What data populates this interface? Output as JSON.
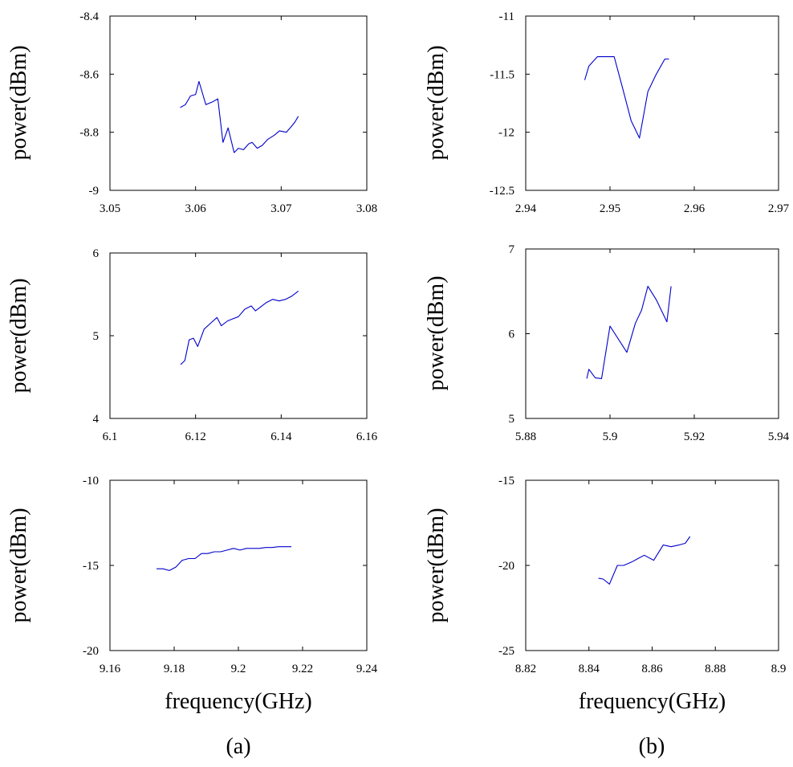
{
  "chart_data": [
    {
      "type": "line",
      "panel": "(a) top",
      "xlabel": "",
      "ylabel": "power(dBm)",
      "xlim": [
        3.05,
        3.08
      ],
      "ylim": [
        -9,
        -8.4
      ],
      "xticks": [
        "3.05",
        "3.06",
        "3.07",
        "3.08"
      ],
      "yticks": [
        "-9",
        "-8.8",
        "-8.6",
        "-8.4"
      ],
      "series": [
        {
          "color": "#0000cc",
          "x": [
            3.0582,
            3.0588,
            3.0594,
            3.06,
            3.0604,
            3.0612,
            3.062,
            3.0626,
            3.0632,
            3.0638,
            3.0645,
            3.065,
            3.0656,
            3.0662,
            3.0666,
            3.0672,
            3.0678,
            3.0684,
            3.0692,
            3.0698,
            3.0706,
            3.0712,
            3.0716,
            3.072
          ],
          "y": [
            -8.715,
            -8.705,
            -8.675,
            -8.67,
            -8.625,
            -8.705,
            -8.695,
            -8.685,
            -8.835,
            -8.785,
            -8.87,
            -8.855,
            -8.86,
            -8.84,
            -8.835,
            -8.855,
            -8.845,
            -8.825,
            -8.81,
            -8.795,
            -8.8,
            -8.78,
            -8.765,
            -8.745
          ]
        }
      ]
    },
    {
      "type": "line",
      "panel": "(b) top",
      "xlabel": "",
      "ylabel": "power(dBm)",
      "xlim": [
        2.94,
        2.97
      ],
      "ylim": [
        -12.5,
        -11
      ],
      "xticks": [
        "2.94",
        "2.95",
        "2.96",
        "2.97"
      ],
      "yticks": [
        "-12.5",
        "-12",
        "-11.5",
        "-11"
      ],
      "series": [
        {
          "color": "#0000cc",
          "x": [
            2.947,
            2.9475,
            2.9485,
            2.9495,
            2.9505,
            2.9515,
            2.9525,
            2.9535,
            2.9545,
            2.9555,
            2.9565,
            2.957
          ],
          "y": [
            -11.55,
            -11.43,
            -11.35,
            -11.35,
            -11.35,
            -11.62,
            -11.9,
            -12.05,
            -11.65,
            -11.5,
            -11.37,
            -11.37
          ]
        }
      ]
    },
    {
      "type": "line",
      "panel": "(a) middle",
      "xlabel": "",
      "ylabel": "power(dBm)",
      "xlim": [
        6.1,
        6.16
      ],
      "ylim": [
        4,
        6
      ],
      "xticks": [
        "6.1",
        "6.12",
        "6.14",
        "6.16"
      ],
      "yticks": [
        "4",
        "5",
        "6"
      ],
      "series": [
        {
          "color": "#0000cc",
          "x": [
            6.1165,
            6.1175,
            6.1185,
            6.1195,
            6.1205,
            6.122,
            6.1235,
            6.125,
            6.126,
            6.1275,
            6.1285,
            6.13,
            6.1315,
            6.133,
            6.134,
            6.1355,
            6.1365,
            6.138,
            6.1395,
            6.141,
            6.1425,
            6.144
          ],
          "y": [
            4.65,
            4.7,
            4.95,
            4.97,
            4.87,
            5.08,
            5.15,
            5.22,
            5.12,
            5.18,
            5.2,
            5.23,
            5.32,
            5.36,
            5.3,
            5.36,
            5.4,
            5.44,
            5.42,
            5.44,
            5.48,
            5.54
          ]
        }
      ]
    },
    {
      "type": "line",
      "panel": "(b) middle",
      "xlabel": "",
      "ylabel": "power(dBm)",
      "xlim": [
        5.88,
        5.94
      ],
      "ylim": [
        5,
        7
      ],
      "xticks": [
        "5.88",
        "5.9",
        "5.92",
        "5.94"
      ],
      "yticks": [
        "5",
        "6",
        "7"
      ],
      "series": [
        {
          "color": "#0000cc",
          "x": [
            5.8945,
            5.895,
            5.8965,
            5.898,
            5.9,
            5.904,
            5.906,
            5.9075,
            5.909,
            5.911,
            5.9135,
            5.9145
          ],
          "y": [
            5.47,
            5.58,
            5.48,
            5.47,
            6.09,
            5.78,
            6.12,
            6.28,
            6.56,
            6.4,
            6.14,
            6.56
          ]
        }
      ]
    },
    {
      "type": "line",
      "panel": "(a) bottom",
      "xlabel": "frequency(GHz)",
      "ylabel": "power(dBm)",
      "xlim": [
        9.16,
        9.24
      ],
      "ylim": [
        -20,
        -10
      ],
      "xticks": [
        "9.16",
        "9.18",
        "9.2",
        "9.22",
        "9.24"
      ],
      "yticks": [
        "-20",
        "-15",
        "-10"
      ],
      "series": [
        {
          "color": "#0000cc",
          "x": [
            9.1745,
            9.1765,
            9.1785,
            9.1805,
            9.1825,
            9.1845,
            9.1865,
            9.1885,
            9.1905,
            9.1925,
            9.1945,
            9.1965,
            9.1985,
            9.2005,
            9.2025,
            9.2045,
            9.2065,
            9.2085,
            9.2105,
            9.2125,
            9.2145,
            9.2165
          ],
          "y": [
            -15.2,
            -15.2,
            -15.3,
            -15.1,
            -14.7,
            -14.6,
            -14.6,
            -14.3,
            -14.3,
            -14.2,
            -14.2,
            -14.1,
            -14.0,
            -14.1,
            -14.0,
            -14.0,
            -14.0,
            -13.95,
            -13.95,
            -13.9,
            -13.9,
            -13.9
          ]
        }
      ]
    },
    {
      "type": "line",
      "panel": "(b) bottom",
      "xlabel": "frequency(GHz)",
      "ylabel": "power(dBm)",
      "xlim": [
        8.82,
        8.9
      ],
      "ylim": [
        -25,
        -15
      ],
      "xticks": [
        "8.82",
        "8.84",
        "8.86",
        "8.88",
        "8.9"
      ],
      "yticks": [
        "-25",
        "-20",
        "-15"
      ],
      "series": [
        {
          "color": "#0000cc",
          "x": [
            8.843,
            8.8445,
            8.8465,
            8.849,
            8.851,
            8.8535,
            8.8555,
            8.8575,
            8.8605,
            8.8635,
            8.866,
            8.8685,
            8.8705,
            8.872
          ],
          "y": [
            -20.75,
            -20.8,
            -21.1,
            -20.0,
            -20.0,
            -19.8,
            -19.6,
            -19.4,
            -19.7,
            -18.8,
            -18.9,
            -18.8,
            -18.7,
            -18.3
          ]
        }
      ]
    }
  ],
  "panel_labels": [
    "(a)",
    "(b)"
  ]
}
